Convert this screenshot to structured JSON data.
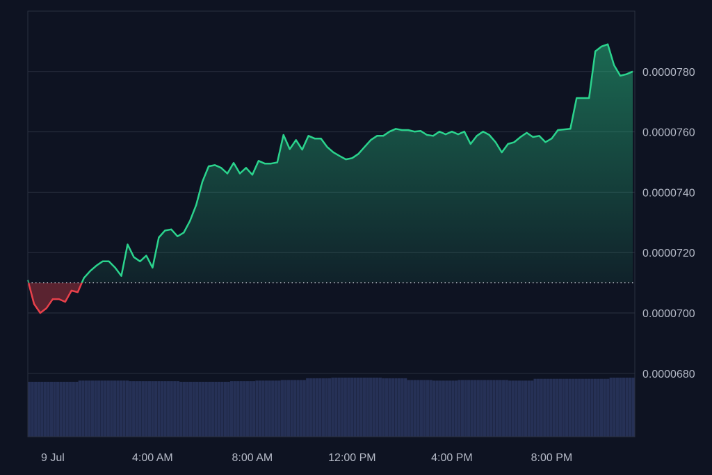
{
  "chart_data": {
    "type": "area",
    "title": "",
    "xlabel": "",
    "ylabel": "",
    "x_tick_labels": [
      {
        "label": "9 Jul",
        "time": "9 Jul 00:00"
      },
      {
        "label": "4:00 AM",
        "time": "9 Jul 04:00"
      },
      {
        "label": "8:00 AM",
        "time": "9 Jul 08:00"
      },
      {
        "label": "12:00 PM",
        "time": "9 Jul 12:00"
      },
      {
        "label": "4:00 PM",
        "time": "9 Jul 16:00"
      },
      {
        "label": "8:00 PM",
        "time": "9 Jul 20:00"
      }
    ],
    "y_tick_labels": [
      "0.0000680",
      "0.0000700",
      "0.0000720",
      "0.0000740",
      "0.0000760",
      "0.0000780"
    ],
    "y_ticks": [
      6.8e-05,
      7e-05,
      7.2e-05,
      7.4e-05,
      7.6e-05,
      7.8e-05
    ],
    "ylim": [
      6.59e-05,
      8e-05
    ],
    "xlim": [
      "8 Jul 23:00",
      "9 Jul 23:20"
    ],
    "grid": true,
    "legend": "none",
    "baseline": 7.1e-05,
    "colors": {
      "background": "#0e1322",
      "up": "#2bd38d",
      "down": "#e8414b",
      "grid": "#2a3040",
      "volume": "#263156",
      "baseline": "#c8ccd6"
    },
    "x": [
      "8 Jul 23:00",
      "8 Jul 23:15",
      "8 Jul 23:30",
      "8 Jul 23:45",
      "9 Jul 00:00",
      "9 Jul 00:15",
      "9 Jul 00:30",
      "9 Jul 00:45",
      "9 Jul 01:00",
      "9 Jul 01:15",
      "9 Jul 01:30",
      "9 Jul 01:45",
      "9 Jul 02:00",
      "9 Jul 02:15",
      "9 Jul 02:30",
      "9 Jul 02:45",
      "9 Jul 03:00",
      "9 Jul 03:15",
      "9 Jul 03:30",
      "9 Jul 03:45",
      "9 Jul 04:00",
      "9 Jul 04:15",
      "9 Jul 04:30",
      "9 Jul 04:45",
      "9 Jul 05:00",
      "9 Jul 05:15",
      "9 Jul 05:30",
      "9 Jul 05:45",
      "9 Jul 06:00",
      "9 Jul 06:15",
      "9 Jul 06:30",
      "9 Jul 06:45",
      "9 Jul 07:00",
      "9 Jul 07:15",
      "9 Jul 07:30",
      "9 Jul 07:45",
      "9 Jul 08:00",
      "9 Jul 08:15",
      "9 Jul 08:30",
      "9 Jul 08:45",
      "9 Jul 09:00",
      "9 Jul 09:15",
      "9 Jul 09:30",
      "9 Jul 09:45",
      "9 Jul 10:00",
      "9 Jul 10:15",
      "9 Jul 10:30",
      "9 Jul 10:45",
      "9 Jul 11:00",
      "9 Jul 11:15",
      "9 Jul 11:30",
      "9 Jul 11:45",
      "9 Jul 12:00",
      "9 Jul 12:15",
      "9 Jul 12:30",
      "9 Jul 12:45",
      "9 Jul 13:00",
      "9 Jul 13:15",
      "9 Jul 13:30",
      "9 Jul 13:45",
      "9 Jul 14:00",
      "9 Jul 14:15",
      "9 Jul 14:30",
      "9 Jul 14:45",
      "9 Jul 15:00",
      "9 Jul 15:15",
      "9 Jul 15:30",
      "9 Jul 15:45",
      "9 Jul 16:00",
      "9 Jul 16:15",
      "9 Jul 16:30",
      "9 Jul 16:45",
      "9 Jul 17:00",
      "9 Jul 17:15",
      "9 Jul 17:30",
      "9 Jul 17:45",
      "9 Jul 18:00",
      "9 Jul 18:15",
      "9 Jul 18:30",
      "9 Jul 18:45",
      "9 Jul 19:00",
      "9 Jul 19:15",
      "9 Jul 19:30",
      "9 Jul 19:45",
      "9 Jul 20:00",
      "9 Jul 20:15",
      "9 Jul 20:30",
      "9 Jul 20:45",
      "9 Jul 21:00",
      "9 Jul 21:15",
      "9 Jul 21:30",
      "9 Jul 21:45",
      "9 Jul 22:00",
      "9 Jul 22:15",
      "9 Jul 22:30",
      "9 Jul 22:45",
      "9 Jul 23:00",
      "9 Jul 23:15"
    ],
    "series": [
      {
        "values": [
          7.109e-05,
          7.03e-05,
          7e-05,
          7.016e-05,
          7.046e-05,
          7.046e-05,
          7.037e-05,
          7.074e-05,
          7.069e-05,
          7.116e-05,
          7.139e-05,
          7.157e-05,
          7.171e-05,
          7.171e-05,
          7.15e-05,
          7.123e-05,
          7.227e-05,
          7.185e-05,
          7.171e-05,
          7.19e-05,
          7.15e-05,
          7.25e-05,
          7.273e-05,
          7.277e-05,
          7.254e-05,
          7.266e-05,
          7.305e-05,
          7.358e-05,
          7.435e-05,
          7.486e-05,
          7.49e-05,
          7.481e-05,
          7.462e-05,
          7.497e-05,
          7.462e-05,
          7.481e-05,
          7.458e-05,
          7.504e-05,
          7.495e-05,
          7.495e-05,
          7.499e-05,
          7.59e-05,
          7.543e-05,
          7.573e-05,
          7.541e-05,
          7.587e-05,
          7.578e-05,
          7.578e-05,
          7.55e-05,
          7.532e-05,
          7.52e-05,
          7.509e-05,
          7.513e-05,
          7.527e-05,
          7.55e-05,
          7.573e-05,
          7.587e-05,
          7.587e-05,
          7.601e-05,
          7.61e-05,
          7.606e-05,
          7.606e-05,
          7.601e-05,
          7.603e-05,
          7.59e-05,
          7.587e-05,
          7.601e-05,
          7.592e-05,
          7.601e-05,
          7.592e-05,
          7.601e-05,
          7.56e-05,
          7.587e-05,
          7.601e-05,
          7.59e-05,
          7.566e-05,
          7.532e-05,
          7.56e-05,
          7.566e-05,
          7.583e-05,
          7.597e-05,
          7.583e-05,
          7.587e-05,
          7.566e-05,
          7.578e-05,
          7.606e-05,
          7.608e-05,
          7.61e-05,
          7.712e-05,
          7.712e-05,
          7.712e-05,
          7.867e-05,
          7.883e-05,
          7.89e-05,
          7.821e-05,
          7.786e-05,
          7.791e-05,
          7.8e-05
        ]
      }
    ],
    "volume_relative": [
      0.93,
      0.93,
      0.95,
      0.95,
      0.94,
      0.94,
      0.93,
      0.93,
      0.94,
      0.95,
      0.96,
      0.99,
      1.0,
      1.0,
      0.99,
      0.96,
      0.95,
      0.96,
      0.96,
      0.95,
      0.98,
      0.98,
      0.98,
      1.0
    ]
  }
}
